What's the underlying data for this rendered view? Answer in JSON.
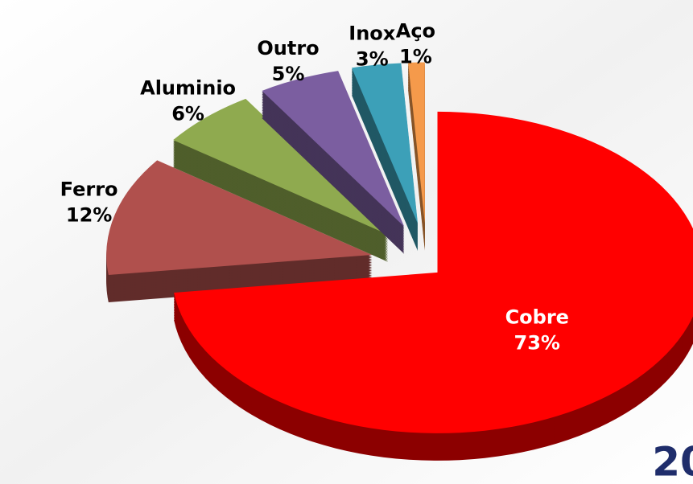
{
  "chart_data": {
    "type": "pie",
    "categories": [
      "Cobre",
      "Ferro",
      "Aluminio",
      "Outro",
      "Inox",
      "Aço"
    ],
    "values": [
      73,
      12,
      6,
      5,
      3,
      1
    ],
    "value_labels": [
      "73%",
      "12%",
      "6%",
      "5%",
      "3%",
      "1%"
    ],
    "colors": [
      "#ff0000",
      "#b0504d",
      "#8faa4f",
      "#7b5ea0",
      "#3ca0b8",
      "#f59a4b"
    ],
    "annotation": "20"
  }
}
